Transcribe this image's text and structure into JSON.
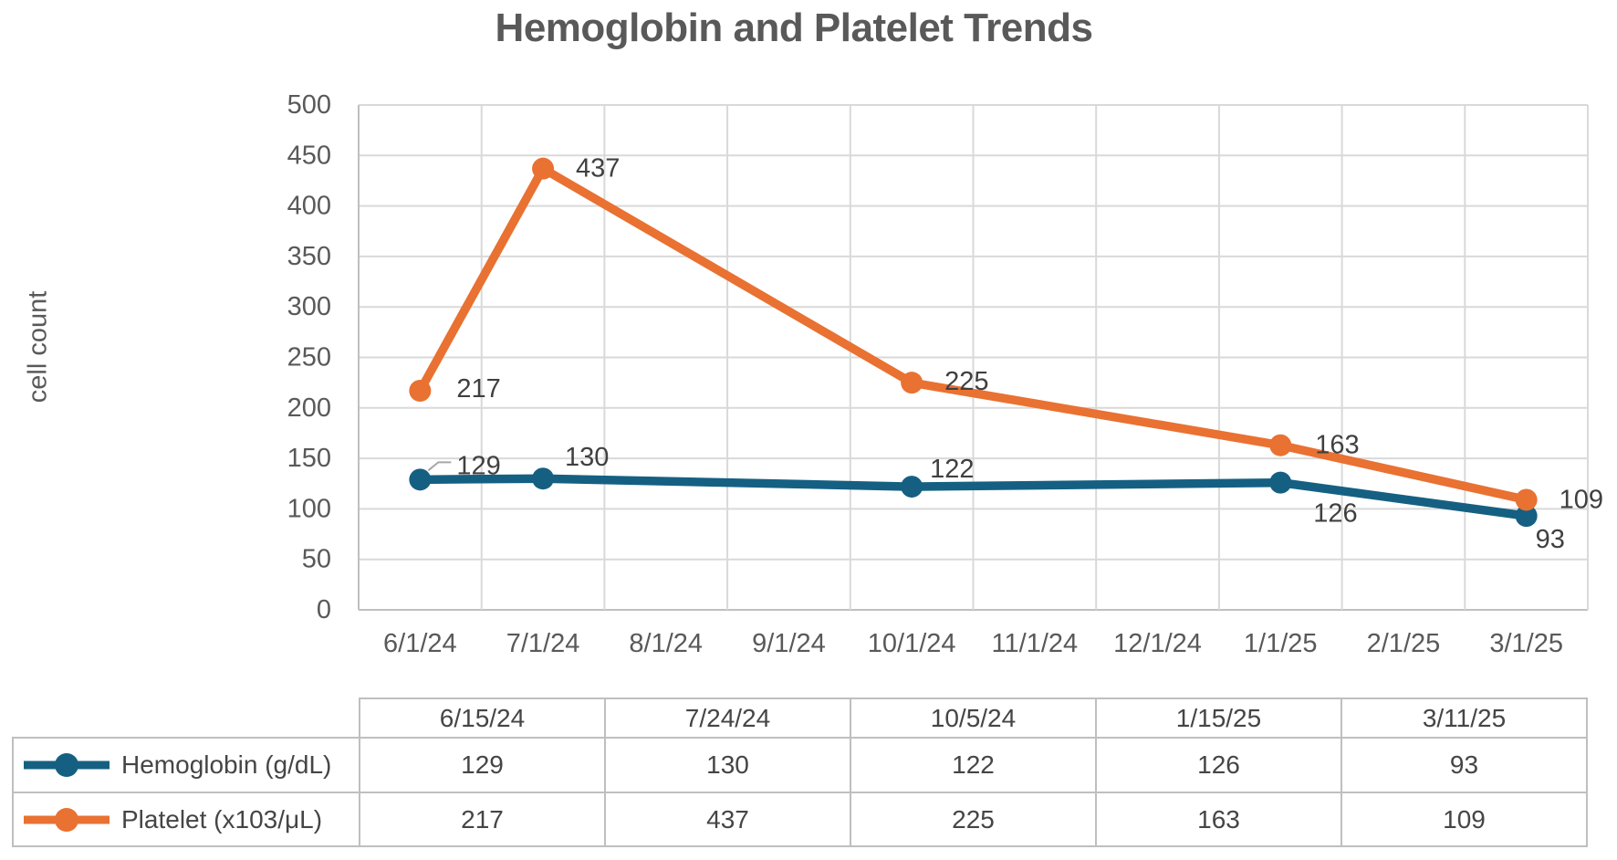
{
  "title": {
    "text": "Hemoglobin and Platelet Trends"
  },
  "colors": {
    "hemoglobin": "#156082",
    "platelet": "#E97132",
    "title_text": "#595959",
    "axis_text": "#595959",
    "data_label_text": "#404040",
    "gridline": "#D9D9D9",
    "axis_line": "#BFBFBF",
    "table_border": "#BFBFBF",
    "leader_line": "#A6A6A6"
  },
  "chart_data": {
    "type": "line",
    "title": "Hemoglobin and Platelet Trends",
    "xlabel": "",
    "ylabel": "cell count",
    "ylim": [
      0,
      500
    ],
    "ytick_step": 50,
    "grid": true,
    "legend_position": "bottom-table",
    "data_labels": true,
    "x_axis_months": [
      "6/1/24",
      "7/1/24",
      "8/1/24",
      "9/1/24",
      "10/1/24",
      "11/1/24",
      "12/1/24",
      "1/1/25",
      "2/1/25",
      "3/1/25"
    ],
    "categories": [
      "6/15/24",
      "7/24/24",
      "10/5/24",
      "1/15/25",
      "3/11/25"
    ],
    "series": [
      {
        "name": "Hemoglobin (g/dL)",
        "color": "#156082",
        "values": [
          129,
          130,
          122,
          126,
          93
        ]
      },
      {
        "name": "Platelet (x103/μL)",
        "color": "#E97132",
        "values": [
          217,
          437,
          225,
          163,
          109
        ]
      }
    ]
  },
  "table": {
    "date_headers": [
      "6/15/24",
      "7/24/24",
      "10/5/24",
      "1/15/25",
      "3/11/25"
    ],
    "rows": [
      {
        "label": "Hemoglobin (g/dL)",
        "values": [
          "129",
          "130",
          "122",
          "126",
          "93"
        ]
      },
      {
        "label": "Platelet (x103/μL)",
        "values": [
          "217",
          "437",
          "225",
          "163",
          "109"
        ]
      }
    ]
  }
}
